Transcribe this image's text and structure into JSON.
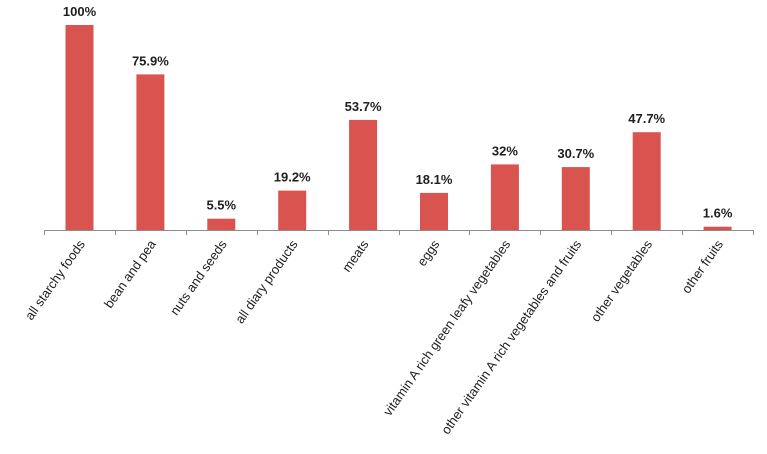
{
  "chart_data": {
    "type": "bar",
    "categories": [
      "all starchy foods",
      "bean and pea",
      "nuts and seeds",
      "all diary products",
      "meats",
      "eggs",
      "vitamin A rich green leafy vegetables",
      "other vitamin A rich vegetables and fruits",
      "other vegetables",
      "other fruits"
    ],
    "values": [
      100,
      75.9,
      5.5,
      19.2,
      53.7,
      18.1,
      32,
      30.7,
      47.7,
      1.6
    ],
    "data_labels": [
      "100%",
      "75.9%",
      "5.5%",
      "19.2%",
      "53.7%",
      "18.1%",
      "32%",
      "30.7%",
      "47.7%",
      "1.6%"
    ],
    "ylim": [
      0,
      100
    ],
    "grid": false,
    "legend": "none",
    "bar_color": "#d9534f"
  }
}
